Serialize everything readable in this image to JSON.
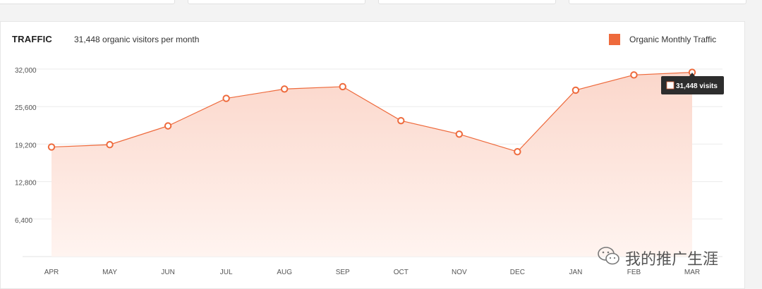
{
  "header": {
    "title": "TRAFFIC",
    "subtitle": "31,448 organic visitors per month"
  },
  "legend": {
    "label": "Organic Monthly Traffic",
    "color": "#ee6a3c"
  },
  "tooltip": {
    "text": "31,448 visits"
  },
  "watermark": {
    "text": "我的推广生涯",
    "icon": "wechat-icon"
  },
  "chart_data": {
    "type": "area",
    "categories": [
      "APR",
      "MAY",
      "JUN",
      "JUL",
      "AUG",
      "SEP",
      "OCT",
      "NOV",
      "DEC",
      "JAN",
      "FEB",
      "MAR"
    ],
    "series": [
      {
        "name": "Organic Monthly Traffic",
        "values": [
          18700,
          19100,
          22300,
          27000,
          28600,
          29000,
          23200,
          20900,
          17900,
          28400,
          31000,
          31448
        ],
        "color": "#ee6a3c"
      }
    ],
    "y_ticks": [
      "32,000",
      "25,600",
      "19,200",
      "12,800",
      "6,400"
    ],
    "y_tick_values": [
      32000,
      25600,
      19200,
      12800,
      6400
    ],
    "ylim": [
      0,
      32000
    ],
    "title": "TRAFFIC",
    "xlabel": "",
    "ylabel": "",
    "grid": true,
    "legend_position": "top-right",
    "highlighted_category": "MAR"
  }
}
